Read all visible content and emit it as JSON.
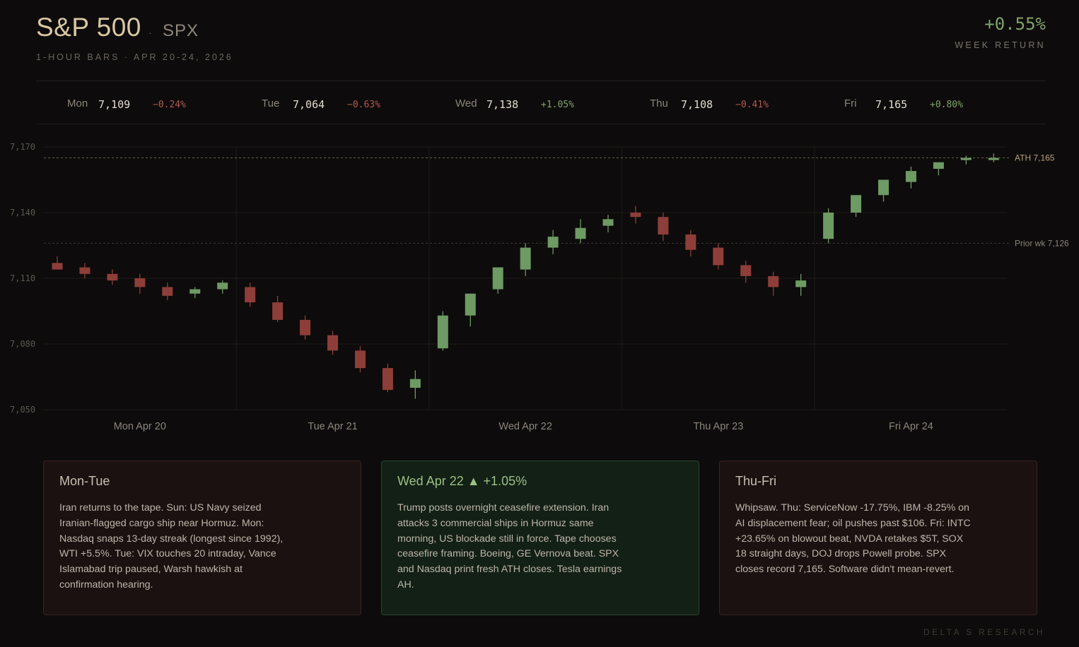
{
  "header": {
    "title": "S&P 500",
    "sep": "·",
    "ticker": "SPX",
    "subtitle": "1-HOUR BARS · APR 20-24, 2026",
    "week_return": "+0.55%",
    "week_return_label": "WEEK RETURN"
  },
  "days": [
    {
      "day": "Mon",
      "close": "7,109",
      "change": "−0.24%",
      "dir": "neg"
    },
    {
      "day": "Tue",
      "close": "7,064",
      "change": "−0.63%",
      "dir": "neg"
    },
    {
      "day": "Wed",
      "close": "7,138",
      "change": "+1.05%",
      "dir": "pos"
    },
    {
      "day": "Thu",
      "close": "7,108",
      "change": "−0.41%",
      "dir": "neg"
    },
    {
      "day": "Fri",
      "close": "7,165",
      "change": "+0.80%",
      "dir": "pos"
    }
  ],
  "colors": {
    "up": "#6e9a63",
    "down": "#8e3e38",
    "ath_line": "#6b6247",
    "prior_line": "#3e3a36"
  },
  "chart_data": {
    "type": "candlestick",
    "ylim": [
      7050,
      7170
    ],
    "yticks": [
      7050,
      7080,
      7110,
      7140,
      7170
    ],
    "ytick_labels": [
      "7,050",
      "7,080",
      "7,110",
      "7,140",
      "7,170"
    ],
    "x_day_labels": [
      "Mon Apr 20",
      "Tue Apr 21",
      "Wed Apr 22",
      "Thu Apr 23",
      "Fri Apr 24"
    ],
    "bars_per_day": 7,
    "reference_lines": [
      {
        "label": "ATH 7,165",
        "value": 7165,
        "style": "ath"
      },
      {
        "label": "Prior wk 7,126",
        "value": 7126,
        "style": "prior"
      }
    ],
    "candles": [
      {
        "o": 7117,
        "h": 7120,
        "l": 7114,
        "c": 7114
      },
      {
        "o": 7115,
        "h": 7117,
        "l": 7110,
        "c": 7112
      },
      {
        "o": 7112,
        "h": 7114,
        "l": 7107,
        "c": 7109
      },
      {
        "o": 7110,
        "h": 7112,
        "l": 7103,
        "c": 7106
      },
      {
        "o": 7106,
        "h": 7108,
        "l": 7100,
        "c": 7102
      },
      {
        "o": 7103,
        "h": 7106,
        "l": 7101,
        "c": 7105
      },
      {
        "o": 7105,
        "h": 7109,
        "l": 7103,
        "c": 7108
      },
      {
        "o": 7106,
        "h": 7108,
        "l": 7097,
        "c": 7099
      },
      {
        "o": 7099,
        "h": 7102,
        "l": 7090,
        "c": 7091
      },
      {
        "o": 7091,
        "h": 7093,
        "l": 7082,
        "c": 7084
      },
      {
        "o": 7084,
        "h": 7086,
        "l": 7075,
        "c": 7077
      },
      {
        "o": 7077,
        "h": 7079,
        "l": 7067,
        "c": 7069
      },
      {
        "o": 7069,
        "h": 7071,
        "l": 7058,
        "c": 7059
      },
      {
        "o": 7060,
        "h": 7068,
        "l": 7055,
        "c": 7064
      },
      {
        "o": 7078,
        "h": 7095,
        "l": 7077,
        "c": 7093
      },
      {
        "o": 7093,
        "h": 7103,
        "l": 7088,
        "c": 7103
      },
      {
        "o": 7105,
        "h": 7115,
        "l": 7103,
        "c": 7115
      },
      {
        "o": 7114,
        "h": 7126,
        "l": 7111,
        "c": 7124
      },
      {
        "o": 7124,
        "h": 7132,
        "l": 7121,
        "c": 7129
      },
      {
        "o": 7128,
        "h": 7137,
        "l": 7126,
        "c": 7133
      },
      {
        "o": 7134,
        "h": 7139,
        "l": 7131,
        "c": 7137
      },
      {
        "o": 7140,
        "h": 7143,
        "l": 7135,
        "c": 7138
      },
      {
        "o": 7138,
        "h": 7140,
        "l": 7127,
        "c": 7130
      },
      {
        "o": 7130,
        "h": 7132,
        "l": 7120,
        "c": 7123
      },
      {
        "o": 7124,
        "h": 7126,
        "l": 7114,
        "c": 7116
      },
      {
        "o": 7116,
        "h": 7118,
        "l": 7108,
        "c": 7111
      },
      {
        "o": 7111,
        "h": 7113,
        "l": 7102,
        "c": 7106
      },
      {
        "o": 7106,
        "h": 7112,
        "l": 7102,
        "c": 7109
      },
      {
        "o": 7128,
        "h": 7142,
        "l": 7126,
        "c": 7140
      },
      {
        "o": 7140,
        "h": 7148,
        "l": 7138,
        "c": 7148
      },
      {
        "o": 7148,
        "h": 7155,
        "l": 7145,
        "c": 7155
      },
      {
        "o": 7154,
        "h": 7161,
        "l": 7151,
        "c": 7159
      },
      {
        "o": 7160,
        "h": 7163,
        "l": 7157,
        "c": 7163
      },
      {
        "o": 7164,
        "h": 7166,
        "l": 7162,
        "c": 7165
      },
      {
        "o": 7164,
        "h": 7167,
        "l": 7163,
        "c": 7165
      }
    ]
  },
  "cards": [
    {
      "title": "Mon-Tue",
      "style": "red",
      "body": "Iran returns to the tape. Sun: US Navy seized Iranian-flagged cargo ship near Hormuz. Mon: Nasdaq snaps 13-day streak (longest since 1992), WTI +5.5%. Tue: VIX touches 20 intraday, Vance Islamabad trip paused, Warsh hawkish at confirmation hearing."
    },
    {
      "title": "Wed Apr 22 ▲ +1.05%",
      "style": "green",
      "body": "Trump posts overnight ceasefire extension. Iran attacks 3 commercial ships in Hormuz same morning, US blockade still in force. Tape chooses ceasefire framing. Boeing, GE Vernova beat. SPX and Nasdaq print fresh ATH closes. Tesla earnings AH."
    },
    {
      "title": "Thu-Fri",
      "style": "red",
      "body": "Whipsaw. Thu: ServiceNow -17.75%, IBM -8.25% on AI displacement fear; oil pushes past $106. Fri: INTC +23.65% on blowout beat, NVDA retakes $5T, SOX 18 straight days, DOJ drops Powell probe. SPX closes record 7,165. Software didn't mean-revert."
    }
  ],
  "footer": "DELTA S RESEARCH"
}
